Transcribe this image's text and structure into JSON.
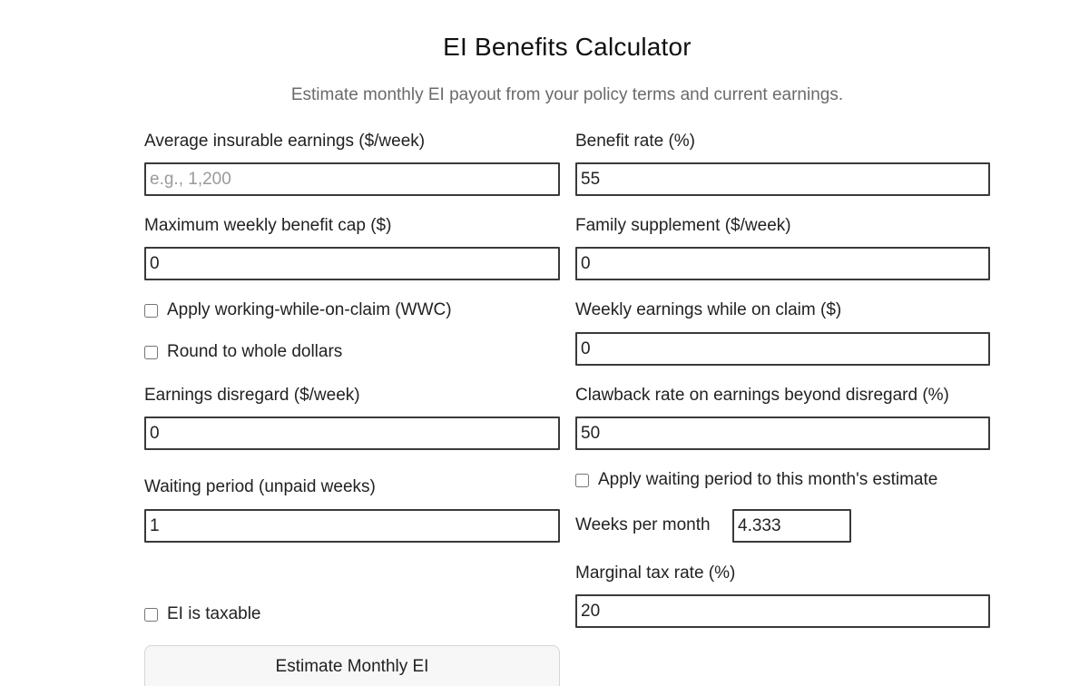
{
  "header": {
    "title": "EI Benefits Calculator",
    "subtitle": "Estimate monthly EI payout from your policy terms and current earnings."
  },
  "fields": {
    "avg_earnings": {
      "label": "Average insurable earnings ($/week)",
      "value": "",
      "placeholder": "e.g., 1,200"
    },
    "benefit_rate": {
      "label": "Benefit rate (%)",
      "value": "55"
    },
    "max_cap": {
      "label": "Maximum weekly benefit cap ($)",
      "value": "0"
    },
    "family_supplement": {
      "label": "Family supplement ($/week)",
      "value": "0"
    },
    "weekly_earnings_claim": {
      "label": "Weekly earnings while on claim ($)",
      "value": "0"
    },
    "earnings_disregard": {
      "label": "Earnings disregard ($/week)",
      "value": "0"
    },
    "clawback_rate": {
      "label": "Clawback rate on earnings beyond disregard (%)",
      "value": "50"
    },
    "waiting_period": {
      "label": "Waiting period (unpaid weeks)",
      "value": "1"
    },
    "weeks_per_month": {
      "label": "Weeks per month",
      "value": "4.333"
    },
    "marginal_tax": {
      "label": "Marginal tax rate (%)",
      "value": "20"
    }
  },
  "checkboxes": {
    "wwc": {
      "label": "Apply working-while-on-claim (WWC)",
      "checked": false
    },
    "round": {
      "label": "Round to whole dollars",
      "checked": false
    },
    "apply_waiting": {
      "label": "Apply waiting period to this month's estimate",
      "checked": false
    },
    "taxable": {
      "label": "EI is taxable",
      "checked": false
    }
  },
  "actions": {
    "estimate_label": "Estimate Monthly EI"
  }
}
